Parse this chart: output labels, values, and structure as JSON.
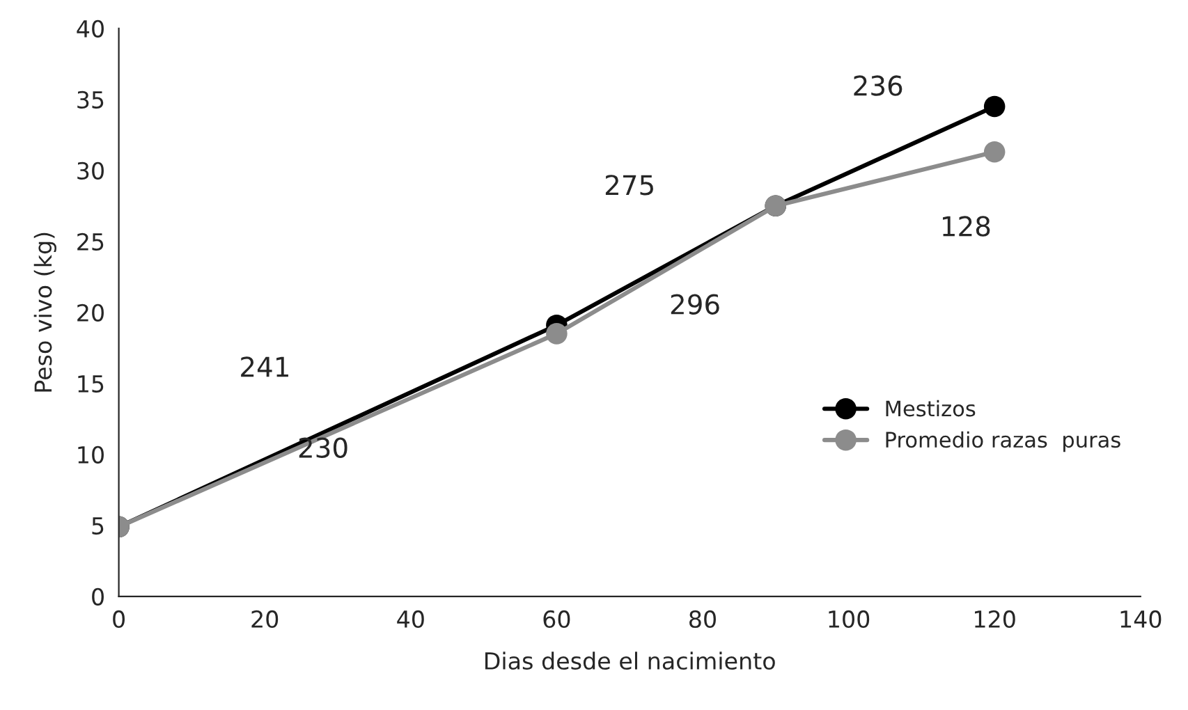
{
  "chart_data": {
    "type": "line",
    "xlabel": "Dias desde el nacimiento",
    "ylabel": "Peso vivo (kg)",
    "x": [
      0,
      60,
      90,
      120
    ],
    "series": [
      {
        "name": "Mestizos",
        "color": "#000000",
        "values": [
          4.9,
          19.1,
          27.5,
          34.5
        ]
      },
      {
        "name": "Promedio razas  puras",
        "color": "#8c8c8c",
        "values": [
          4.9,
          18.5,
          27.5,
          31.3
        ]
      }
    ],
    "xlim": [
      0,
      140
    ],
    "xticks": [
      0,
      20,
      40,
      60,
      80,
      100,
      120,
      140
    ],
    "ylim": [
      0,
      40
    ],
    "yticks": [
      0,
      5,
      10,
      15,
      20,
      25,
      30,
      35,
      40
    ],
    "annotations": [
      "241",
      "230",
      "275",
      "296",
      "236",
      "128"
    ],
    "marker": "circle",
    "line_style": "solid",
    "legend": "right",
    "grid": false
  }
}
